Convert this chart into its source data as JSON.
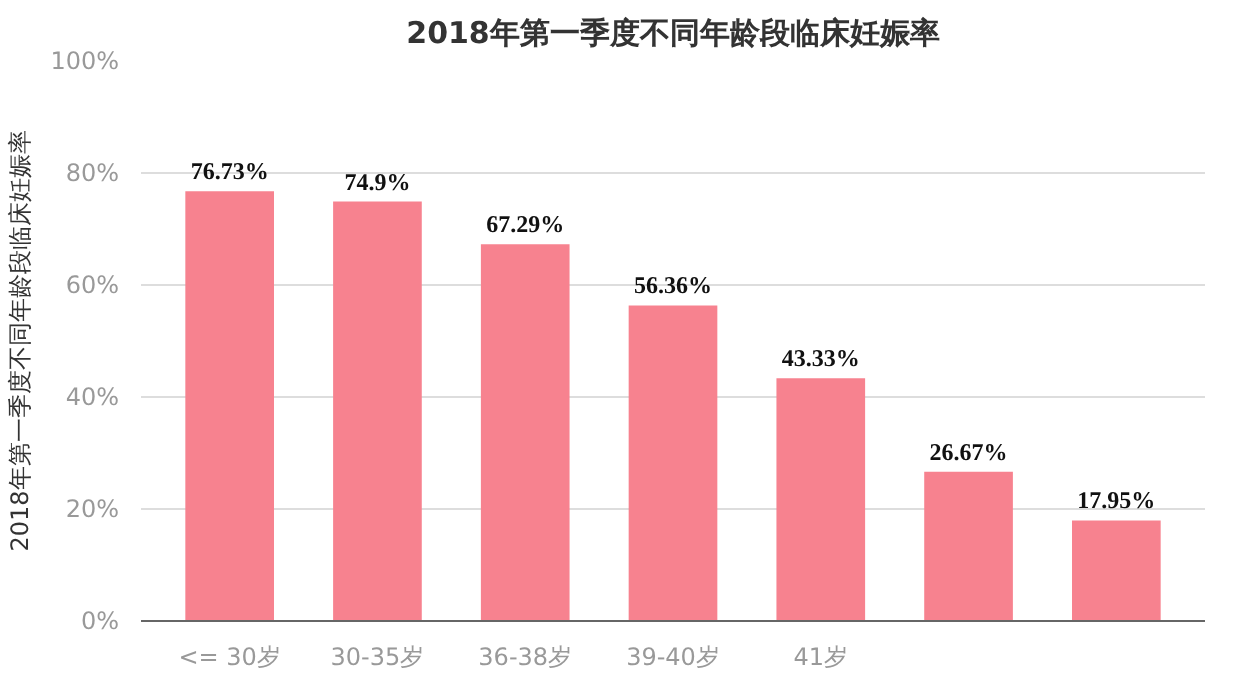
{
  "chart_data": {
    "type": "bar",
    "title": "2018年第一季度不同年龄段临床妊娠率",
    "ylabel": "2018年第一季度不同年龄段临床妊娠率",
    "categories": [
      "<= 30岁",
      "30-35岁",
      "36-38岁",
      "39-40岁",
      "41岁",
      null,
      null
    ],
    "values": [
      76.73,
      74.9,
      67.29,
      56.36,
      43.33,
      26.67,
      17.95
    ],
    "value_labels": [
      "76.73%",
      "74.9%",
      "67.29%",
      "56.36%",
      "43.33%",
      "26.67%",
      "17.95%"
    ],
    "color": "#f7828f",
    "ylim": [
      0,
      100
    ],
    "yticks": [
      {
        "value": 0,
        "label": "0%"
      },
      {
        "value": 20,
        "label": "20%"
      },
      {
        "value": 40,
        "label": "40%"
      },
      {
        "value": 60,
        "label": "60%"
      },
      {
        "value": 80,
        "label": "80%"
      },
      {
        "value": 100,
        "label": "100%"
      }
    ],
    "grid": "y"
  }
}
